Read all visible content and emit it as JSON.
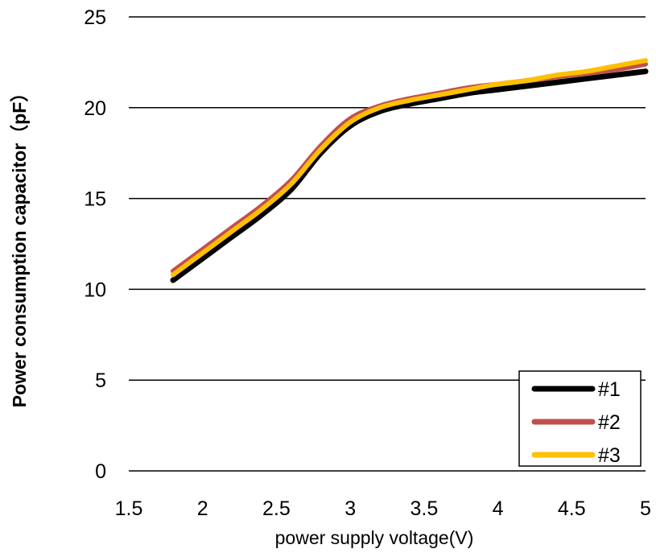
{
  "chart_data": {
    "type": "line",
    "title": "",
    "xlabel": "power supply voltage(V)",
    "ylabel": "Power consumption capacitor（pF）",
    "xlim": [
      1.5,
      5
    ],
    "ylim": [
      0,
      25
    ],
    "xticks": [
      1.5,
      2,
      2.5,
      3,
      3.5,
      4,
      4.5,
      5
    ],
    "xtick_labels": [
      "1.5",
      "2",
      "2.5",
      "3",
      "3.5",
      "4",
      "4.5",
      "5"
    ],
    "yticks": [
      0,
      5,
      10,
      15,
      20,
      25
    ],
    "ytick_labels": [
      "0",
      "5",
      "10",
      "15",
      "20",
      "25"
    ],
    "grid": "horizontal",
    "legend_position": "bottom-right",
    "series": [
      {
        "name": "#1",
        "color": "#000000",
        "x": [
          1.8,
          2.0,
          2.2,
          2.4,
          2.6,
          2.8,
          3.0,
          3.2,
          3.4,
          3.6,
          3.8,
          4.0,
          4.2,
          4.4,
          4.6,
          4.8,
          5.0
        ],
        "y": [
          10.5,
          11.7,
          12.9,
          14.1,
          15.5,
          17.5,
          19.0,
          19.8,
          20.2,
          20.5,
          20.8,
          21.0,
          21.2,
          21.4,
          21.6,
          21.8,
          22.0
        ]
      },
      {
        "name": "#2",
        "color": "#c0504d",
        "x": [
          1.8,
          2.0,
          2.2,
          2.4,
          2.6,
          2.8,
          3.0,
          3.2,
          3.4,
          3.6,
          3.8,
          4.0,
          4.2,
          4.4,
          4.6,
          4.8,
          5.0
        ],
        "y": [
          11.0,
          12.2,
          13.4,
          14.6,
          16.0,
          17.9,
          19.4,
          20.1,
          20.5,
          20.8,
          21.1,
          21.3,
          21.5,
          21.7,
          21.9,
          22.1,
          22.4
        ]
      },
      {
        "name": "#3",
        "color": "#ffc000",
        "x": [
          1.8,
          2.0,
          2.2,
          2.4,
          2.6,
          2.8,
          3.0,
          3.2,
          3.4,
          3.6,
          3.8,
          4.0,
          4.2,
          4.4,
          4.6,
          4.8,
          5.0
        ],
        "y": [
          10.8,
          12.0,
          13.2,
          14.4,
          15.8,
          17.7,
          19.2,
          20.0,
          20.4,
          20.7,
          21.0,
          21.3,
          21.5,
          21.8,
          22.0,
          22.3,
          22.6
        ]
      }
    ]
  }
}
